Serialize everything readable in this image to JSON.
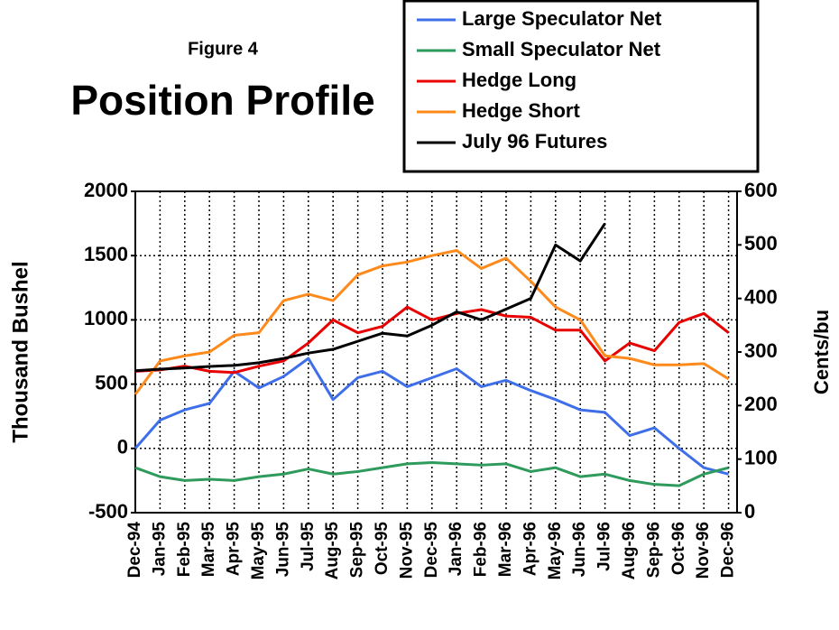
{
  "chart_data": {
    "type": "line",
    "subtitle": "Figure 4",
    "title": "Position Profile",
    "ylabel": "Thousand Bushel",
    "y2label": "Cents/bu",
    "categories": [
      "Dec-94",
      "Jan-95",
      "Feb-95",
      "Mar-95",
      "Apr-95",
      "May-95",
      "Jun-95",
      "Jul-95",
      "Aug-95",
      "Sep-95",
      "Oct-95",
      "Nov-95",
      "Dec-95",
      "Jan-96",
      "Feb-96",
      "Mar-96",
      "Apr-96",
      "May-96",
      "Jun-96",
      "Jul-96",
      "Aug-96",
      "Sep-96",
      "Oct-96",
      "Nov-96",
      "Dec-96"
    ],
    "series": [
      {
        "name": "Large Speculator Net",
        "color": "#3f6fe8",
        "values": [
          0,
          220,
          300,
          350,
          600,
          470,
          560,
          700,
          380,
          550,
          600,
          480,
          550,
          620,
          480,
          530,
          450,
          380,
          300,
          280,
          100,
          160,
          0,
          -150,
          -200
        ]
      },
      {
        "name": "Small Speculator Net",
        "color": "#2e9a5c",
        "values": [
          -150,
          -220,
          -250,
          -240,
          -250,
          -220,
          -200,
          -160,
          -200,
          -180,
          -150,
          -120,
          -110,
          -120,
          -130,
          -120,
          -180,
          -150,
          -220,
          -200,
          -250,
          -280,
          -290,
          -200,
          -150
        ]
      },
      {
        "name": "Hedge Long",
        "color": "#e80000",
        "values": [
          600,
          610,
          640,
          600,
          590,
          640,
          680,
          820,
          1000,
          900,
          950,
          1100,
          1000,
          1050,
          1080,
          1030,
          1020,
          920,
          920,
          680,
          820,
          760,
          980,
          1050,
          900
        ]
      },
      {
        "name": "Hedge Short",
        "color": "#ff8a1c",
        "values": [
          420,
          680,
          720,
          750,
          880,
          900,
          1150,
          1200,
          1150,
          1350,
          1420,
          1450,
          1500,
          1540,
          1400,
          1480,
          1300,
          1100,
          1000,
          720,
          700,
          650,
          650,
          660,
          540
        ]
      },
      {
        "name": "July 96 Futures",
        "color": "#000000",
        "axis": "y2",
        "values": [
          265,
          268,
          270,
          273,
          275,
          280,
          288,
          298,
          305,
          320,
          335,
          330,
          350,
          375,
          360,
          380,
          400,
          500,
          470,
          540,
          null,
          null,
          null,
          null,
          null
        ]
      }
    ],
    "ylim": [
      -500,
      2000
    ],
    "yticks": [
      -500,
      0,
      500,
      1000,
      1500,
      2000
    ],
    "y2lim": [
      0,
      600
    ],
    "y2ticks": [
      0,
      100,
      200,
      300,
      400,
      500,
      600
    ],
    "grid": true,
    "legend": "top-right"
  }
}
